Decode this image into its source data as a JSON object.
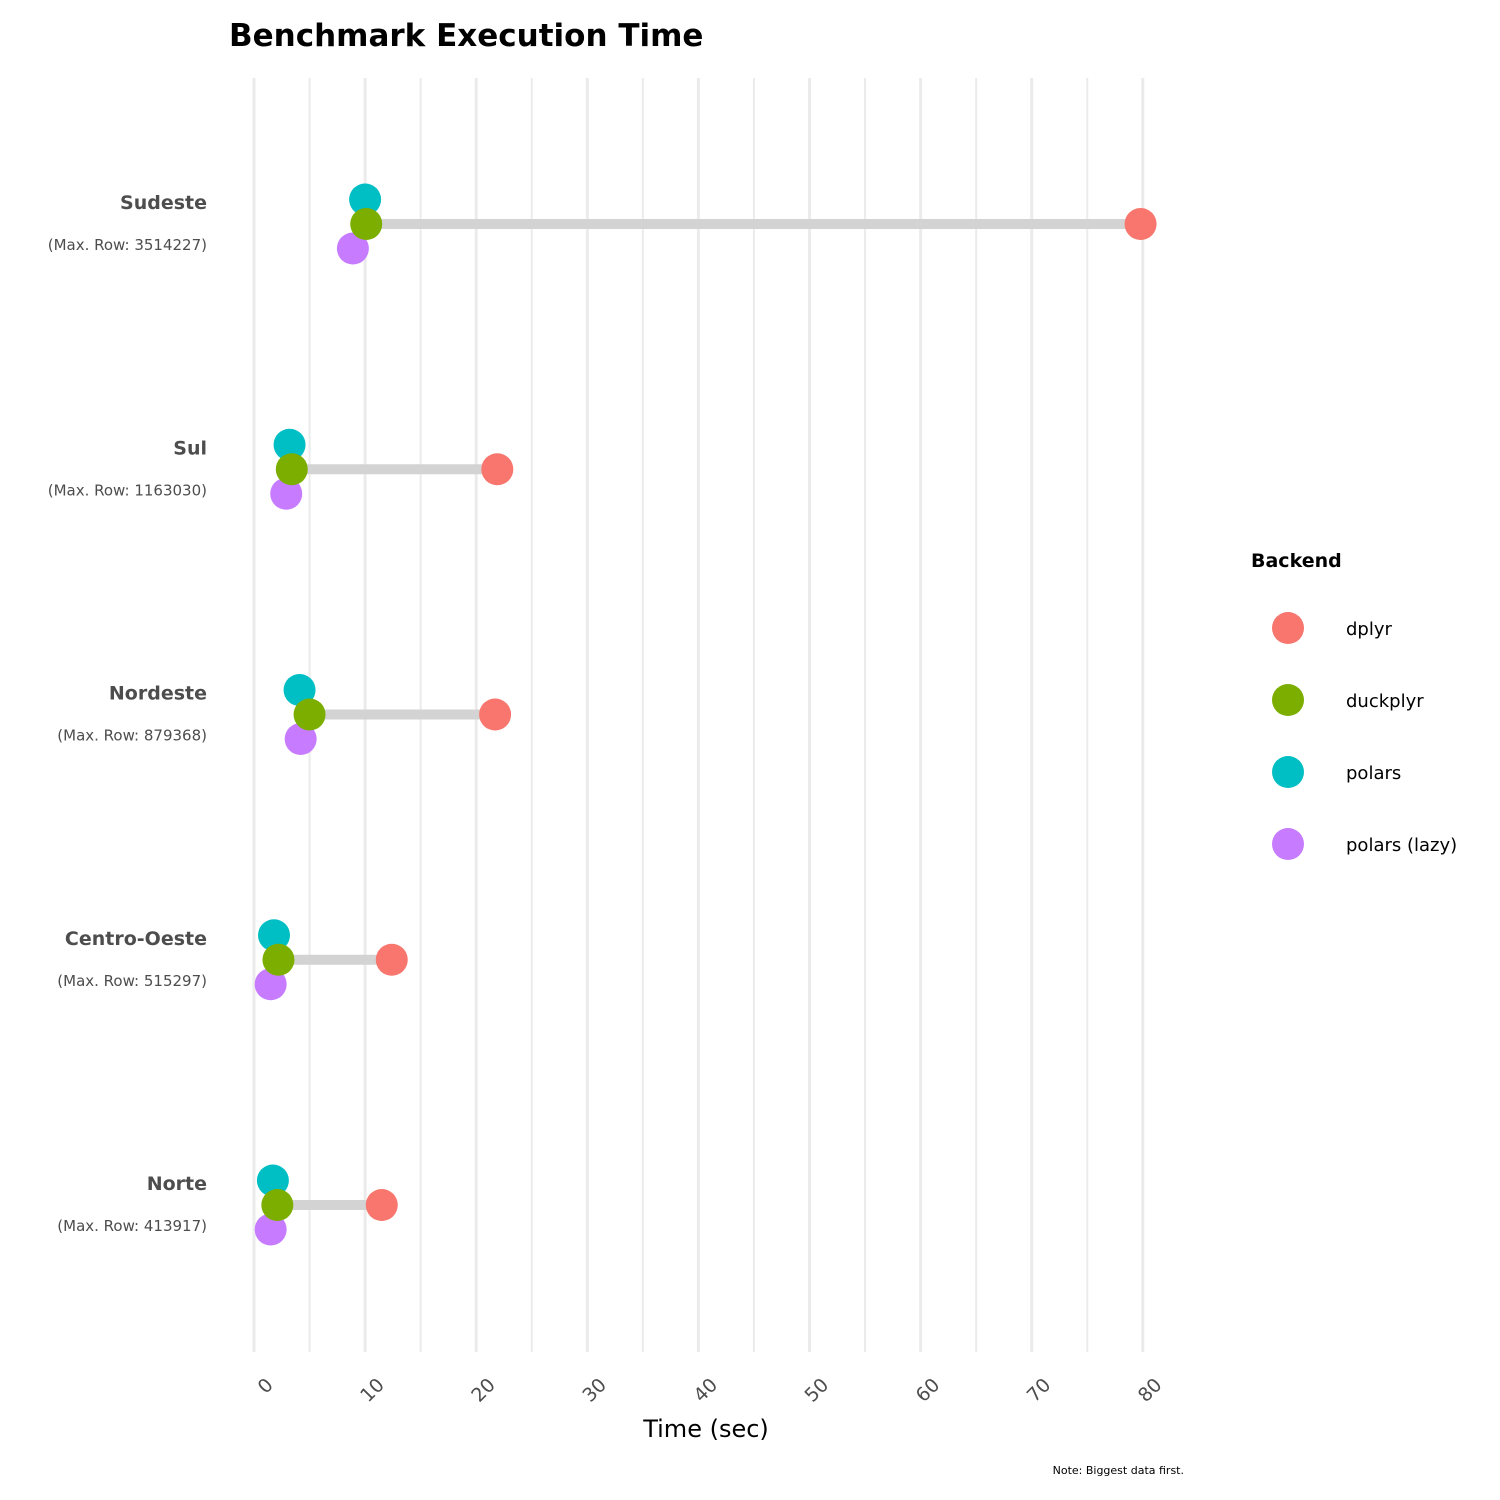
{
  "chart_data": {
    "type": "scatter",
    "title": "Benchmark Execution Time",
    "xlabel": "Time (sec)",
    "ylabel": "",
    "xlim": [
      0,
      80
    ],
    "xticks": [
      0,
      10,
      20,
      30,
      40,
      50,
      60,
      70,
      80
    ],
    "grid": "vertical",
    "legend_title": "Backend",
    "legend_position": "right",
    "caption": "Note: Biggest data first.",
    "categories": [
      {
        "name": "Sudeste",
        "subtitle": "(Max. Row: 3514227)"
      },
      {
        "name": "Sul",
        "subtitle": "(Max. Row: 1163030)"
      },
      {
        "name": "Nordeste",
        "subtitle": "(Max. Row: 879368)"
      },
      {
        "name": "Centro-Oeste",
        "subtitle": "(Max. Row: 515297)"
      },
      {
        "name": "Norte",
        "subtitle": "(Max. Row: 413917)"
      }
    ],
    "series": [
      {
        "name": "dplyr",
        "color": "#F8766D",
        "values": [
          79.8,
          21.9,
          21.7,
          12.4,
          11.5
        ]
      },
      {
        "name": "duckplyr",
        "color": "#7CAE00",
        "values": [
          10.1,
          3.4,
          5.0,
          2.2,
          2.1
        ]
      },
      {
        "name": "polars",
        "color": "#00BFC4",
        "values": [
          10.0,
          3.2,
          4.1,
          1.8,
          1.7
        ]
      },
      {
        "name": "polars (lazy)",
        "color": "#C77CFF",
        "values": [
          8.9,
          2.9,
          4.2,
          1.5,
          1.5
        ]
      }
    ]
  }
}
